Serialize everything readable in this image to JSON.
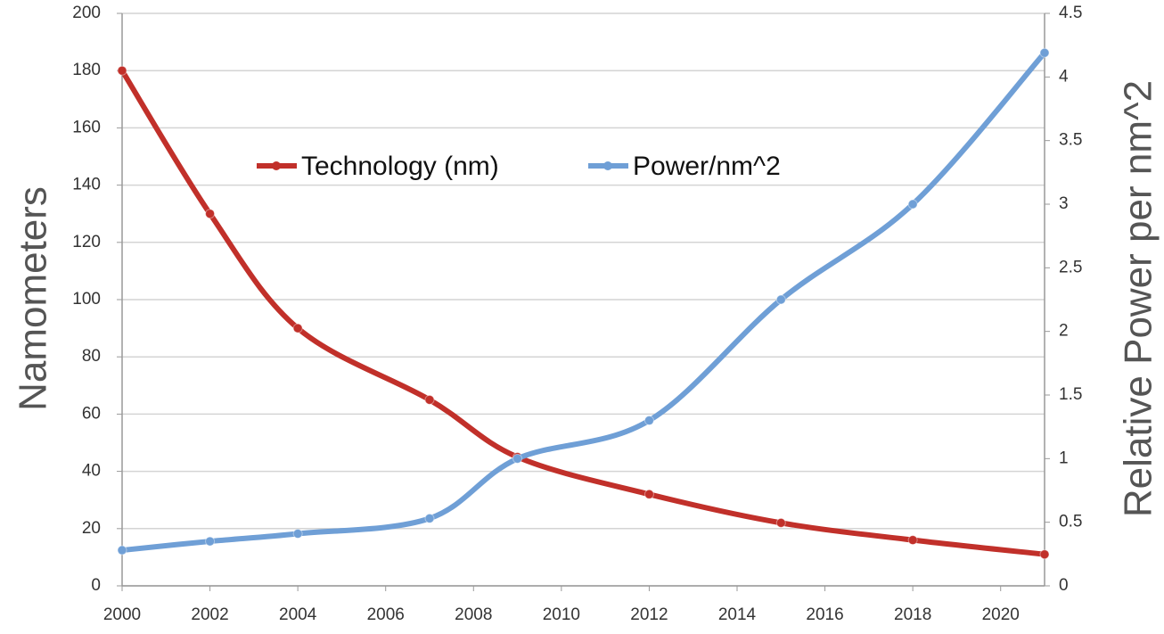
{
  "chart_data": {
    "type": "line",
    "x": [
      2000,
      2002,
      2004,
      2007,
      2009,
      2012,
      2015,
      2018,
      2021
    ],
    "series": [
      {
        "name": "Technology (nm)",
        "color": "#c1302a",
        "values": [
          180,
          130,
          90,
          65,
          45,
          32,
          22,
          16,
          11
        ]
      },
      {
        "name": "Power/nm^2",
        "color": "#6f9fd6",
        "axis": "y2",
        "values": [
          0.28,
          0.35,
          0.41,
          0.53,
          1.0,
          1.3,
          2.25,
          3.0,
          4.19
        ]
      }
    ],
    "y_label": "Namometers",
    "y2_label": "Relative  Power per nm^2",
    "xlim": [
      2000,
      2021
    ],
    "xticks": [
      2000,
      2002,
      2004,
      2006,
      2008,
      2010,
      2012,
      2014,
      2016,
      2018,
      2020
    ],
    "ylim": [
      0,
      200
    ],
    "yticks": [
      0,
      20,
      40,
      60,
      80,
      100,
      120,
      140,
      160,
      180,
      200
    ],
    "y2lim": [
      0,
      4.5
    ],
    "y2ticks": [
      0,
      0.5,
      1,
      1.5,
      2,
      2.5,
      3,
      3.5,
      4,
      4.5
    ],
    "grid": true,
    "legend": "top"
  }
}
